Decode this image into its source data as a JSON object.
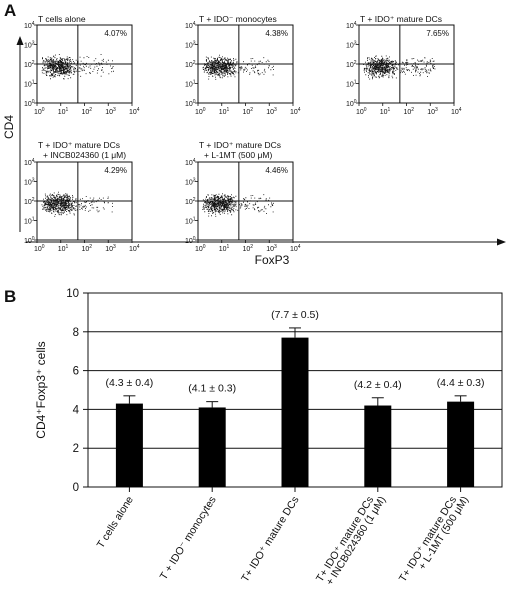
{
  "panel_a": {
    "label": "A",
    "ylabel": "CD4",
    "xlabel": "FoxP3",
    "ticks": [
      "10",
      "10",
      "10",
      "10",
      "10"
    ],
    "tick_exps": [
      "0",
      "1",
      "2",
      "3",
      "4"
    ],
    "plots": [
      {
        "title": "T cells alone",
        "percent": "4.07%",
        "upper_right_fraction": 0.0407
      },
      {
        "title": "T + IDO⁻ monocytes",
        "percent": "4.38%",
        "upper_right_fraction": 0.0438
      },
      {
        "title": "T + IDO⁺ mature DCs",
        "percent": "7.65%",
        "upper_right_fraction": 0.0765
      },
      {
        "title": "T + IDO⁺ mature DCs",
        "title2": "+ INCB024360 (1 μM)",
        "percent": "4.29%",
        "upper_right_fraction": 0.0429
      },
      {
        "title": "T + IDO⁺ mature DCs",
        "title2": "+ L-1MT (500 μM)",
        "percent": "4.46%",
        "upper_right_fraction": 0.0446
      }
    ]
  },
  "chart_data": {
    "panel": "B",
    "type": "bar",
    "ylabel": "CD4⁺Foxp3⁺ cells",
    "ylim": [
      0,
      10
    ],
    "yticks": [
      0,
      2,
      4,
      6,
      8,
      10
    ],
    "grid": true,
    "categories": [
      {
        "line1": "T cells alone",
        "line2": ""
      },
      {
        "line1": "T + IDO⁻ monocytes",
        "line2": ""
      },
      {
        "line1": "T+ IDO⁺ mature DCs",
        "line2": ""
      },
      {
        "line1": "T+ IDO⁺ mature DCs",
        "line2": "+ INCB024360 (1 μM)"
      },
      {
        "line1": "T+ IDO⁺ mature DCs",
        "line2": "+ L-1MT (500 μM)"
      }
    ],
    "values": [
      4.3,
      4.1,
      7.7,
      4.2,
      4.4
    ],
    "errors": [
      0.4,
      0.3,
      0.5,
      0.4,
      0.3
    ],
    "annotations": [
      "(4.3 ± 0.4)",
      "(4.1 ± 0.3)",
      "(7.7 ± 0.5)",
      "(4.2 ± 0.4)",
      "(4.4 ± 0.3)"
    ],
    "bar_color": "#000000"
  }
}
